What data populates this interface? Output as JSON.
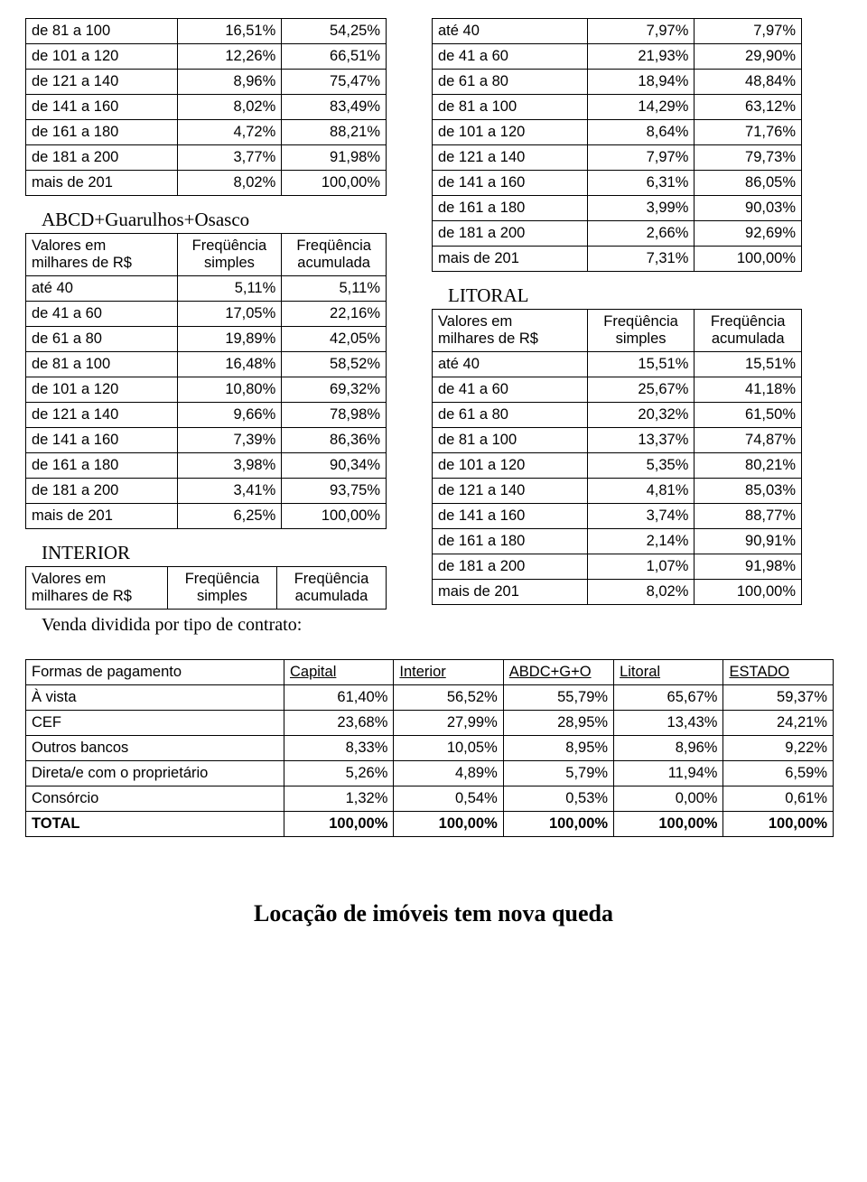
{
  "headers": {
    "col1_line1": "Valores em",
    "col1_line2": "milhares de R$",
    "col2_line1": "Freqüência",
    "col2_line2": "simples",
    "col3_line1": "Freqüência",
    "col3_line2": "acumulada"
  },
  "titles": {
    "abcd": "ABCD+Guarulhos+Osasco",
    "interior": "INTERIOR",
    "litoral": "LITORAL",
    "caption": "Venda dividida por tipo de contrato:",
    "headline": "Locação de imóveis tem nova queda"
  },
  "left_partial": {
    "rows": [
      [
        "de 81 a 100",
        "16,51%",
        "54,25%"
      ],
      [
        "de 101 a 120",
        "12,26%",
        "66,51%"
      ],
      [
        "de 121 a 140",
        "8,96%",
        "75,47%"
      ],
      [
        "de 141 a 160",
        "8,02%",
        "83,49%"
      ],
      [
        "de 161 a 180",
        "4,72%",
        "88,21%"
      ],
      [
        "de 181 a 200",
        "3,77%",
        "91,98%"
      ],
      [
        "mais de 201",
        "8,02%",
        "100,00%"
      ]
    ]
  },
  "abcd": {
    "rows": [
      [
        "até 40",
        "5,11%",
        "5,11%"
      ],
      [
        "de 41 a 60",
        "17,05%",
        "22,16%"
      ],
      [
        "de 61 a 80",
        "19,89%",
        "42,05%"
      ],
      [
        "de 81 a 100",
        "16,48%",
        "58,52%"
      ],
      [
        "de 101 a 120",
        "10,80%",
        "69,32%"
      ],
      [
        "de 121 a 140",
        "9,66%",
        "78,98%"
      ],
      [
        "de 141 a 160",
        "7,39%",
        "86,36%"
      ],
      [
        "de 161 a 180",
        "3,98%",
        "90,34%"
      ],
      [
        "de 181 a 200",
        "3,41%",
        "93,75%"
      ],
      [
        "mais de 201",
        "6,25%",
        "100,00%"
      ]
    ]
  },
  "right_partial": {
    "rows": [
      [
        "até 40",
        "7,97%",
        "7,97%"
      ],
      [
        "de 41 a 60",
        "21,93%",
        "29,90%"
      ],
      [
        "de 61 a 80",
        "18,94%",
        "48,84%"
      ],
      [
        "de 81 a 100",
        "14,29%",
        "63,12%"
      ],
      [
        "de 101 a 120",
        "8,64%",
        "71,76%"
      ],
      [
        "de 121 a 140",
        "7,97%",
        "79,73%"
      ],
      [
        "de 141 a 160",
        "6,31%",
        "86,05%"
      ],
      [
        "de 161 a 180",
        "3,99%",
        "90,03%"
      ],
      [
        "de 181 a 200",
        "2,66%",
        "92,69%"
      ],
      [
        "mais de 201",
        "7,31%",
        "100,00%"
      ]
    ]
  },
  "litoral": {
    "rows": [
      [
        "até 40",
        "15,51%",
        "15,51%"
      ],
      [
        "de 41 a 60",
        "25,67%",
        "41,18%"
      ],
      [
        "de 61 a 80",
        "20,32%",
        "61,50%"
      ],
      [
        "de 81 a 100",
        "13,37%",
        "74,87%"
      ],
      [
        "de 101 a 120",
        "5,35%",
        "80,21%"
      ],
      [
        "de 121 a 140",
        "4,81%",
        "85,03%"
      ],
      [
        "de 141 a 160",
        "3,74%",
        "88,77%"
      ],
      [
        "de 161 a 180",
        "2,14%",
        "90,91%"
      ],
      [
        "de 181 a 200",
        "1,07%",
        "91,98%"
      ],
      [
        "mais de 201",
        "8,02%",
        "100,00%"
      ]
    ]
  },
  "payment": {
    "headers": [
      "Formas de pagamento",
      "Capital",
      "Interior",
      "ABDC+G+O",
      "Litoral",
      "ESTADO"
    ],
    "rows": [
      [
        "À vista",
        "61,40%",
        "56,52%",
        "55,79%",
        "65,67%",
        "59,37%"
      ],
      [
        "CEF",
        "23,68%",
        "27,99%",
        "28,95%",
        "13,43%",
        "24,21%"
      ],
      [
        "Outros bancos",
        "8,33%",
        "10,05%",
        "8,95%",
        "8,96%",
        "9,22%"
      ],
      [
        "Direta/e com o proprietário",
        "5,26%",
        "4,89%",
        "5,79%",
        "11,94%",
        "6,59%"
      ],
      [
        "Consórcio",
        "1,32%",
        "0,54%",
        "0,53%",
        "0,00%",
        "0,61%"
      ]
    ],
    "total": [
      "TOTAL",
      "100,00%",
      "100,00%",
      "100,00%",
      "100,00%",
      "100,00%"
    ]
  },
  "style": {
    "border_color": "#000000",
    "text_color": "#000000",
    "bg": "#ffffff",
    "body_font": "Times New Roman",
    "table_font": "Arial",
    "body_fontsize": 17,
    "table_fontsize": 16.5,
    "title_fontsize": 21,
    "headline_fontsize": 26
  }
}
